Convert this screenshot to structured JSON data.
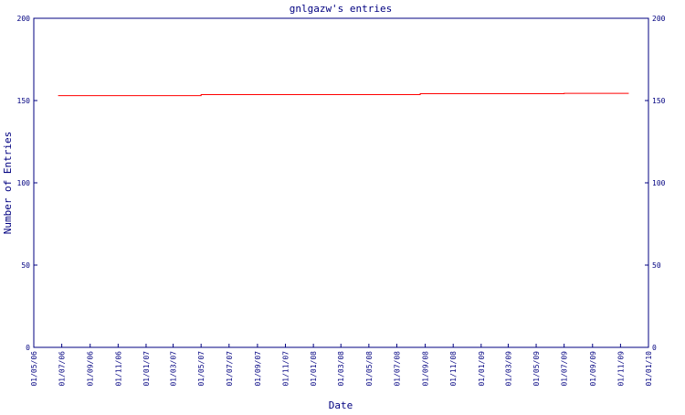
{
  "chart_data": {
    "type": "line",
    "title": "gnlgazw's entries",
    "x_label": "Date",
    "y_label": "Number of Entries",
    "x": [
      "23/06/06",
      "01/05/07",
      "01/05/07",
      "21/08/08",
      "21/08/08",
      "01/07/09",
      "01/07/09",
      "19/11/09"
    ],
    "series": [
      {
        "name": "entries",
        "color": "#ff0000",
        "values": [
          153,
          153,
          153.6,
          153.6,
          154.2,
          154.2,
          154.4,
          154.4
        ]
      }
    ],
    "xlim": [
      "01/05/06",
      "01/01/10"
    ],
    "xticks": [
      "01/05/06",
      "01/07/06",
      "01/09/06",
      "01/11/06",
      "01/01/07",
      "01/03/07",
      "01/05/07",
      "01/07/07",
      "01/09/07",
      "01/11/07",
      "01/01/08",
      "01/03/08",
      "01/05/08",
      "01/07/08",
      "01/09/08",
      "01/11/08",
      "01/01/09",
      "01/03/09",
      "01/05/09",
      "01/07/09",
      "01/09/09",
      "01/11/09",
      "01/01/10"
    ],
    "ylim": [
      0,
      200
    ],
    "yticks": [
      0,
      50,
      100,
      150,
      200
    ]
  }
}
